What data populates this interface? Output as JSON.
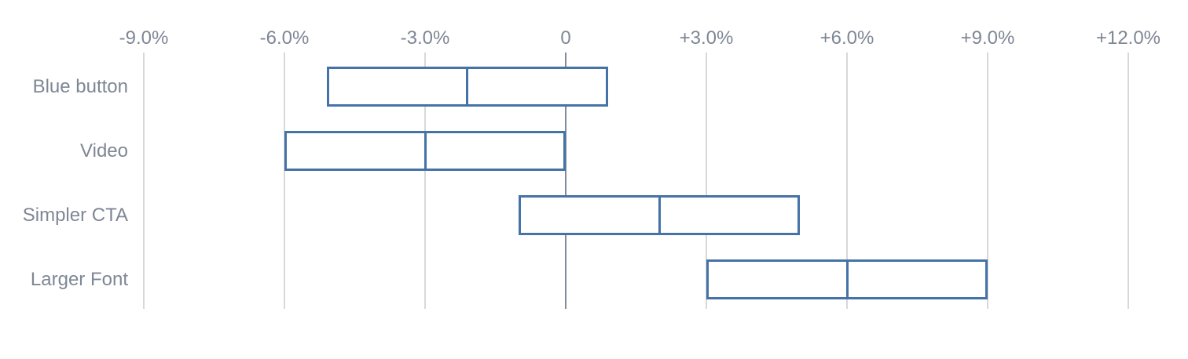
{
  "chart_data": {
    "type": "columnrange",
    "title": "",
    "xlabel": "",
    "ylabel": "",
    "orientation": "horizontal",
    "categories": [
      "Blue button",
      "Video",
      "Simpler CTA",
      "Larger Font"
    ],
    "values": [
      {
        "category": "Blue button",
        "low": -5.1,
        "mid": -2.1,
        "high": 0.9
      },
      {
        "category": "Video",
        "low": -6.0,
        "mid": -3.0,
        "high": 0.0
      },
      {
        "category": "Simpler CTA",
        "low": -1.0,
        "mid": 2.0,
        "high": 5.0
      },
      {
        "category": "Larger Font",
        "low": 3.0,
        "mid": 6.0,
        "high": 9.0
      }
    ],
    "axis": {
      "min": -9,
      "max": 12,
      "unit": "%",
      "grid": true,
      "ticks": [
        {
          "value": -9,
          "label": "-9.0%"
        },
        {
          "value": -6,
          "label": "-6.0%"
        },
        {
          "value": -3,
          "label": "-3.0%"
        },
        {
          "value": 0,
          "label": "0"
        },
        {
          "value": 3,
          "label": "+3.0%"
        },
        {
          "value": 6,
          "label": "+6.0%"
        },
        {
          "value": 9,
          "label": "+9.0%"
        },
        {
          "value": 12,
          "label": "+12.0%"
        }
      ]
    },
    "legend": false,
    "colors": {
      "box_border": "#4572a7",
      "box_fill": "#ffffff",
      "gridline": "#d8d8d8",
      "zero_line": "#808c99",
      "label_text": "#7e8795"
    }
  }
}
